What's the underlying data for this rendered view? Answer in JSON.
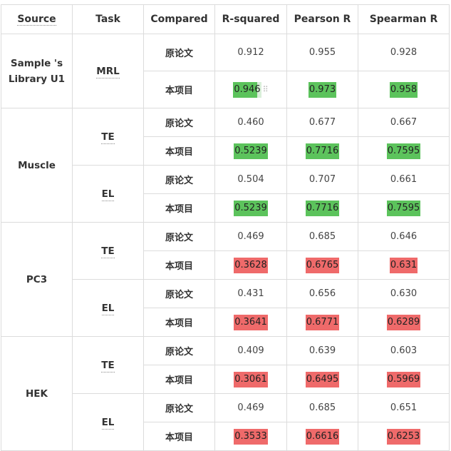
{
  "headers": [
    "Source",
    "Task",
    "Compared",
    "R-squared",
    "Pearson R",
    "Spearman R"
  ],
  "groups": [
    {
      "source_line1": "Sample 's",
      "source_line2": "Library U1",
      "tasks": [
        {
          "name": "MRL",
          "rows": [
            {
              "compared": "原论文",
              "r2": "0.912",
              "pearson": "0.955",
              "spearman": "0.928",
              "status": "none"
            },
            {
              "compared": "本项目",
              "r2": "0.946",
              "pearson": "0.973",
              "spearman": "0.958",
              "status": "good"
            }
          ]
        }
      ]
    },
    {
      "source_line1": "Muscle",
      "source_line2": "",
      "tasks": [
        {
          "name": "TE",
          "rows": [
            {
              "compared": "原论文",
              "r2": "0.460",
              "pearson": "0.677",
              "spearman": "0.667",
              "status": "none"
            },
            {
              "compared": "本项目",
              "r2": "0.5239",
              "pearson": "0.7716",
              "spearman": "0.7595",
              "status": "good"
            }
          ]
        },
        {
          "name": "EL",
          "rows": [
            {
              "compared": "原论文",
              "r2": "0.504",
              "pearson": "0.707",
              "spearman": "0.661",
              "status": "none"
            },
            {
              "compared": "本项目",
              "r2": "0.5239",
              "pearson": "0.7716",
              "spearman": "0.7595",
              "status": "good"
            }
          ]
        }
      ]
    },
    {
      "source_line1": "PC3",
      "source_line2": "",
      "tasks": [
        {
          "name": "TE",
          "rows": [
            {
              "compared": "原论文",
              "r2": "0.469",
              "pearson": "0.685",
              "spearman": "0.646",
              "status": "none"
            },
            {
              "compared": "本项目",
              "r2": "0.3628",
              "pearson": "0.6765",
              "spearman": "0.631",
              "status": "bad"
            }
          ]
        },
        {
          "name": "EL",
          "rows": [
            {
              "compared": "原论文",
              "r2": "0.431",
              "pearson": "0.656",
              "spearman": "0.630",
              "status": "none"
            },
            {
              "compared": "本项目",
              "r2": "0.3641",
              "pearson": "0.6771",
              "spearman": "0.6289",
              "status": "bad"
            }
          ]
        }
      ]
    },
    {
      "source_line1": "HEK",
      "source_line2": "",
      "tasks": [
        {
          "name": "TE",
          "rows": [
            {
              "compared": "原论文",
              "r2": "0.409",
              "pearson": "0.639",
              "spearman": "0.603",
              "status": "none"
            },
            {
              "compared": "本项目",
              "r2": "0.3061",
              "pearson": "0.6495",
              "spearman": "0.5969",
              "status": "bad"
            }
          ]
        },
        {
          "name": "EL",
          "rows": [
            {
              "compared": "原论文",
              "r2": "0.469",
              "pearson": "0.685",
              "spearman": "0.651",
              "status": "none"
            },
            {
              "compared": "本项目",
              "r2": "0.3533",
              "pearson": "0.6616",
              "spearman": "0.6253",
              "status": "bad"
            }
          ]
        }
      ]
    }
  ],
  "colors": {
    "good": "#5cc35c",
    "bad": "#ef6a6a",
    "border": "#dcdcdc"
  }
}
